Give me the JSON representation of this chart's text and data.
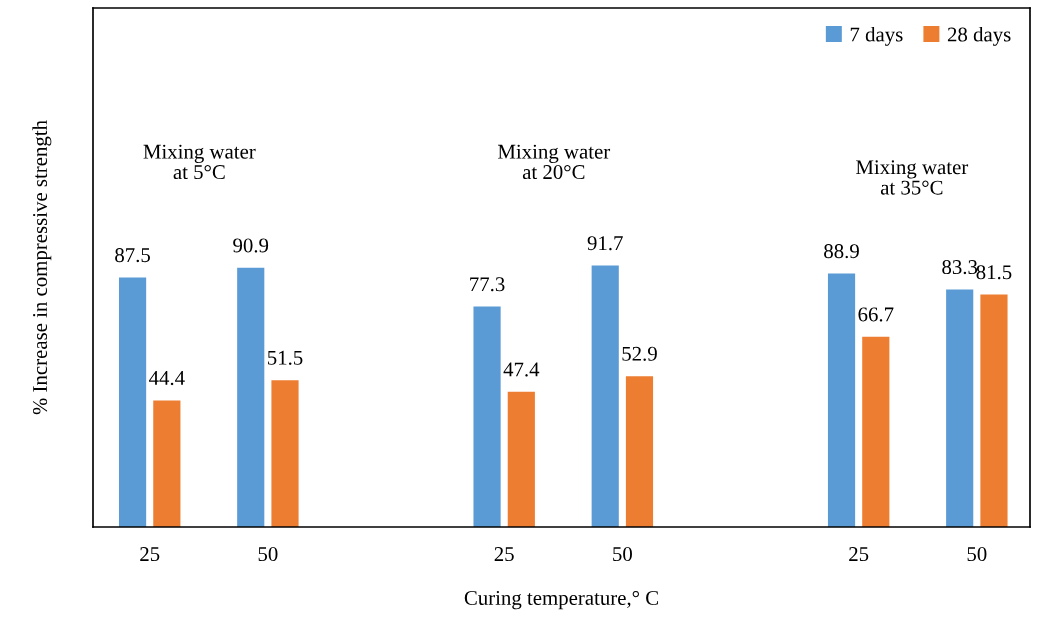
{
  "chart_data": {
    "type": "bar",
    "xlabel": "Curing temperature,° C",
    "ylabel": "% Increase in compressive strength",
    "categories": [
      "25",
      "50",
      null,
      "25",
      "50",
      null,
      "25",
      "50"
    ],
    "series": [
      {
        "name": "7 days",
        "color": "#5b9bd5",
        "values": [
          87.5,
          90.9,
          null,
          77.3,
          91.7,
          null,
          88.9,
          83.3
        ]
      },
      {
        "name": "28 days",
        "color": "#ed7d31",
        "values": [
          44.4,
          51.5,
          null,
          47.4,
          52.9,
          null,
          66.7,
          81.5
        ]
      }
    ],
    "annotations": [
      "Mixing water\nat 5°C",
      "Mixing water\nat 20°C",
      "Mixing water\nat 35°C"
    ],
    "ylim": [
      0,
      182
    ],
    "tick_labels": "x",
    "data_labels": true,
    "legend": "top right",
    "grid": false
  }
}
